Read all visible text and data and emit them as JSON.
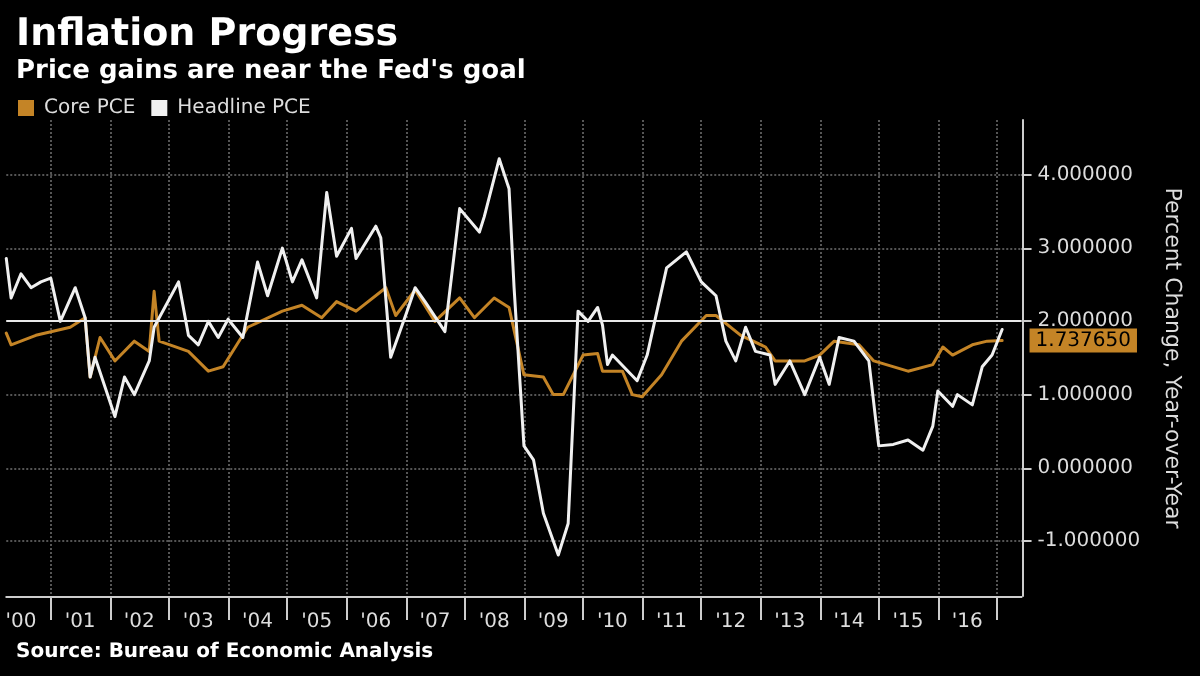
{
  "chart_data": {
    "type": "line",
    "title": "Inflation Progress",
    "subtitle": "Price gains are near the Fed's goal",
    "ylabel": "Percent Change, Year-over-Year",
    "annotations": [
      "Source: Bureau of Economic Analysis"
    ],
    "xlim": [
      "2000-04",
      "2017-06"
    ],
    "xticks": [
      {
        "value": "2000-07",
        "label": "'00"
      },
      {
        "value": "2001-01",
        "label": null
      },
      {
        "value": "2001-07",
        "label": "'01"
      },
      {
        "value": "2002-01",
        "label": null
      },
      {
        "value": "2002-07",
        "label": "'02"
      },
      {
        "value": "2003-01",
        "label": null
      },
      {
        "value": "2003-07",
        "label": "'03"
      },
      {
        "value": "2004-01",
        "label": null
      },
      {
        "value": "2004-07",
        "label": "'04"
      },
      {
        "value": "2005-01",
        "label": null
      },
      {
        "value": "2005-07",
        "label": "'05"
      },
      {
        "value": "2006-01",
        "label": null
      },
      {
        "value": "2006-07",
        "label": "'06"
      },
      {
        "value": "2007-01",
        "label": null
      },
      {
        "value": "2007-07",
        "label": "'07"
      },
      {
        "value": "2008-01",
        "label": null
      },
      {
        "value": "2008-07",
        "label": "'08"
      },
      {
        "value": "2009-01",
        "label": null
      },
      {
        "value": "2009-07",
        "label": "'09"
      },
      {
        "value": "2010-01",
        "label": null
      },
      {
        "value": "2010-07",
        "label": "'10"
      },
      {
        "value": "2011-01",
        "label": null
      },
      {
        "value": "2011-07",
        "label": "'11"
      },
      {
        "value": "2012-01",
        "label": null
      },
      {
        "value": "2012-07",
        "label": "'12"
      },
      {
        "value": "2013-01",
        "label": null
      },
      {
        "value": "2013-07",
        "label": "'13"
      },
      {
        "value": "2014-01",
        "label": null
      },
      {
        "value": "2014-07",
        "label": "'14"
      },
      {
        "value": "2015-01",
        "label": null
      },
      {
        "value": "2015-07",
        "label": "'15"
      },
      {
        "value": "2016-01",
        "label": null
      },
      {
        "value": "2016-07",
        "label": "'16"
      },
      {
        "value": "2017-01",
        "label": null
      }
    ],
    "ylim": [
      -1.75,
      4.75
    ],
    "yticks": [
      {
        "value": -1,
        "label": "-1.000000"
      },
      {
        "value": 0,
        "label": "0.000000"
      },
      {
        "value": 1,
        "label": "1.000000"
      },
      {
        "value": 2,
        "label": "2.000000"
      },
      {
        "value": 3,
        "label": "3.000000"
      },
      {
        "value": 4,
        "label": "4.000000"
      }
    ],
    "grid": true,
    "legend": "top left",
    "marker": "none",
    "line_style": "solid",
    "ref_lines": [
      {
        "axis": "y",
        "value": 2,
        "color": "#e8e8e8"
      }
    ],
    "series": [
      {
        "name": "Core PCE",
        "color": "#c48426",
        "x": [
          "2000-04",
          "2000-05",
          "2000-10",
          "2001-05",
          "2001-08",
          "2001-09",
          "2001-11",
          "2002-02",
          "2002-06",
          "2002-09",
          "2002-10",
          "2002-11",
          "2003-05",
          "2003-09",
          "2003-12",
          "2004-05",
          "2004-12",
          "2005-04",
          "2005-08",
          "2005-11",
          "2006-03",
          "2006-09",
          "2006-11",
          "2007-03",
          "2007-07",
          "2007-12",
          "2008-03",
          "2008-07",
          "2008-10",
          "2009-01",
          "2009-05",
          "2009-07",
          "2009-09",
          "2010-01",
          "2010-04",
          "2010-05",
          "2010-09",
          "2010-11",
          "2011-01",
          "2011-05",
          "2011-09",
          "2012-02",
          "2012-04",
          "2012-09",
          "2013-02",
          "2013-04",
          "2013-10",
          "2014-01",
          "2014-04",
          "2014-09",
          "2014-12",
          "2015-07",
          "2015-12",
          "2016-02",
          "2016-04",
          "2016-08",
          "2016-11",
          "2017-02"
        ],
        "values": [
          1.84,
          1.68,
          1.81,
          1.92,
          2.05,
          1.24,
          1.78,
          1.46,
          1.73,
          1.59,
          2.41,
          1.73,
          1.59,
          1.32,
          1.38,
          1.92,
          2.14,
          2.22,
          2.05,
          2.27,
          2.14,
          2.46,
          2.08,
          2.43,
          2.0,
          2.32,
          2.05,
          2.32,
          2.19,
          1.27,
          1.24,
          1.0,
          1.0,
          1.54,
          1.56,
          1.32,
          1.32,
          1.0,
          0.97,
          1.27,
          1.73,
          2.08,
          2.08,
          1.81,
          1.65,
          1.46,
          1.46,
          1.54,
          1.73,
          1.68,
          1.46,
          1.32,
          1.41,
          1.65,
          1.54,
          1.68,
          1.73,
          1.73765
        ],
        "value_labels": [
          null,
          null,
          null,
          null,
          null,
          null,
          null,
          null,
          null,
          null,
          null,
          null,
          null,
          null,
          null,
          null,
          null,
          null,
          null,
          null,
          null,
          null,
          null,
          null,
          null,
          null,
          null,
          null,
          null,
          null,
          null,
          null,
          null,
          null,
          null,
          null,
          null,
          null,
          null,
          null,
          null,
          null,
          null,
          null,
          null,
          null,
          null,
          null,
          null,
          null,
          null,
          null,
          null,
          null,
          null,
          null,
          null,
          "1.737650"
        ]
      },
      {
        "name": "Headline PCE",
        "color": "#f0f0f0",
        "x": [
          "2000-04",
          "2000-05",
          "2000-07",
          "2000-09",
          "2000-11",
          "2001-01",
          "2001-03",
          "2001-06",
          "2001-08",
          "2001-09",
          "2001-10",
          "2002-02",
          "2002-04",
          "2002-06",
          "2002-09",
          "2002-10",
          "2003-03",
          "2003-05",
          "2003-07",
          "2003-09",
          "2003-11",
          "2004-01",
          "2004-04",
          "2004-07",
          "2004-09",
          "2004-12",
          "2005-02",
          "2005-04",
          "2005-07",
          "2005-09",
          "2005-11",
          "2006-02",
          "2006-03",
          "2006-07",
          "2006-08",
          "2006-10",
          "2007-01",
          "2007-03",
          "2007-05",
          "2007-09",
          "2007-12",
          "2008-04",
          "2008-05",
          "2008-08",
          "2008-10",
          "2008-11",
          "2009-01",
          "2009-03",
          "2009-05",
          "2009-08",
          "2009-10",
          "2009-12",
          "2010-02",
          "2010-04",
          "2010-05",
          "2010-06",
          "2010-07",
          "2010-12",
          "2011-02",
          "2011-06",
          "2011-10",
          "2012-01",
          "2012-04",
          "2012-06",
          "2012-08",
          "2012-10",
          "2012-12",
          "2013-03",
          "2013-04",
          "2013-07",
          "2013-10",
          "2014-01",
          "2014-03",
          "2014-05",
          "2014-08",
          "2014-11",
          "2015-01",
          "2015-04",
          "2015-07",
          "2015-10",
          "2015-12",
          "2016-01",
          "2016-04",
          "2016-05",
          "2016-08",
          "2016-10",
          "2016-12",
          "2017-02"
        ],
        "values": [
          2.86,
          2.32,
          2.65,
          2.46,
          2.54,
          2.59,
          2.0,
          2.46,
          2.05,
          1.24,
          1.51,
          0.7,
          1.24,
          1.0,
          1.46,
          1.92,
          2.54,
          1.81,
          1.68,
          2.0,
          1.78,
          2.03,
          1.78,
          2.81,
          2.35,
          3.0,
          2.54,
          2.84,
          2.32,
          3.76,
          2.89,
          3.27,
          2.86,
          3.3,
          3.14,
          1.51,
          2.08,
          2.46,
          2.27,
          1.86,
          3.54,
          3.22,
          3.43,
          4.22,
          3.81,
          2.46,
          0.3,
          0.11,
          -0.62,
          -1.19,
          -0.76,
          2.14,
          2.0,
          2.19,
          1.95,
          1.41,
          1.54,
          1.19,
          1.54,
          2.73,
          2.95,
          2.54,
          2.35,
          1.73,
          1.46,
          1.92,
          1.59,
          1.54,
          1.14,
          1.46,
          1.0,
          1.51,
          1.14,
          1.78,
          1.73,
          1.46,
          0.3,
          0.32,
          0.38,
          0.24,
          0.57,
          1.05,
          0.84,
          1.0,
          0.86,
          1.38,
          1.54,
          1.89
        ]
      }
    ]
  }
}
